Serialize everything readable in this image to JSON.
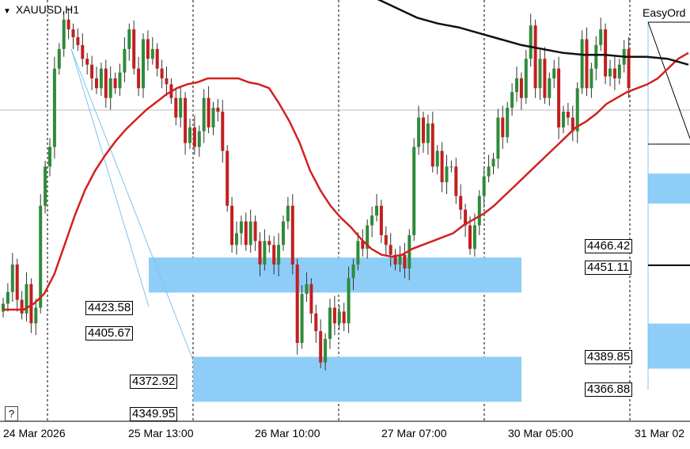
{
  "window": {
    "symbol_title": "XAUUSD,H1",
    "indicator_label": "EasyOrd",
    "help_glyph": "?"
  },
  "colors": {
    "bull": "#2e8b3a",
    "bear": "#c21f1f",
    "ma_red": "#d42020",
    "ma_black": "#111111",
    "zone": "#8ecdf7",
    "grid": "#000000"
  },
  "chart_data": {
    "type": "candlestick",
    "symbol": "XAUUSD",
    "timeframe": "H1",
    "ylim": [
      4340,
      4555
    ],
    "x_ticks": [
      "24 Mar 2026",
      "25 Mar 13:00",
      "26 Mar 10:00",
      "27 Mar 07:00",
      "30 Mar 05:00",
      "31 Mar 02"
    ],
    "price_labels": {
      "left": [
        "4423.58",
        "4405.67",
        "4372.92",
        "4349.95"
      ],
      "right": [
        "4466.42",
        "4451.11",
        "4389.85",
        "4366.88"
      ]
    },
    "zones": [
      {
        "name": "demand-zone-upper",
        "top": 4423.58,
        "bottom": 4405.67
      },
      {
        "name": "demand-zone-lower",
        "top": 4372.92,
        "bottom": 4349.95
      },
      {
        "name": "right-zone-upper",
        "top": 4466.42,
        "bottom": 4451.11
      },
      {
        "name": "right-zone-lower",
        "top": 4389.85,
        "bottom": 4366.88
      }
    ],
    "close_series": [
      4400,
      4406,
      4420,
      4402,
      4395,
      4410,
      4390,
      4398,
      4450,
      4470,
      4480,
      4520,
      4530,
      4545,
      4540,
      4536,
      4532,
      4525,
      4522,
      4515,
      4510,
      4520,
      4505,
      4515,
      4510,
      4518,
      4530,
      4540,
      4520,
      4510,
      4535,
      4525,
      4530,
      4520,
      4515,
      4512,
      4505,
      4495,
      4505,
      4482,
      4490,
      4480,
      4488,
      4505,
      4490,
      4500,
      4498,
      4478,
      4450,
      4430,
      4436,
      4442,
      4430,
      4442,
      4432,
      4420,
      4432,
      4430,
      4420,
      4430,
      4442,
      4450,
      4420,
      4380,
      4405,
      4410,
      4395,
      4386,
      4370,
      4382,
      4398,
      4390,
      4396,
      4390,
      4413,
      4420,
      4432,
      4428,
      4440,
      4445,
      4450,
      4435,
      4430,
      4425,
      4420,
      4425,
      4418,
      4435,
      4480,
      4495,
      4482,
      4492,
      4470,
      4478,
      4462,
      4470,
      4470,
      4455,
      4448,
      4440,
      4428,
      4440,
      4455,
      4465,
      4470,
      4474,
      4495,
      4485,
      4500,
      4508,
      4515,
      4505,
      4525,
      4542,
      4510,
      4525,
      4505,
      4515,
      4520,
      4490,
      4498,
      4495,
      4488,
      4510,
      4535,
      4510,
      4520,
      4532,
      4540,
      4516,
      4520,
      4515,
      4522,
      4530,
      4510
    ],
    "ma_red_series": [
      4397,
      4397,
      4397,
      4400,
      4405,
      4415,
      4430,
      4445,
      4458,
      4468,
      4476,
      4483,
      4489,
      4494,
      4499,
      4503,
      4507,
      4510,
      4512,
      4513,
      4515,
      4515,
      4515,
      4515,
      4513,
      4512,
      4510,
      4502,
      4493,
      4482,
      4468,
      4458,
      4450,
      4444,
      4439,
      4433,
      4428,
      4425,
      4424,
      4425,
      4428,
      4430,
      4432,
      4434,
      4436,
      4440,
      4443,
      4446,
      4450,
      4455,
      4460,
      4465,
      4470,
      4475,
      4480,
      4485,
      4490,
      4493,
      4497,
      4502,
      4505,
      4508,
      4510,
      4512,
      4515,
      4520,
      4525,
      4528
    ],
    "ma_black_series": [
      4580,
      4570,
      4562,
      4556,
      4551,
      4546,
      4543,
      4541,
      4538,
      4535,
      4532,
      4530,
      4528,
      4527,
      4527,
      4526,
      4526,
      4525,
      4522
    ]
  }
}
